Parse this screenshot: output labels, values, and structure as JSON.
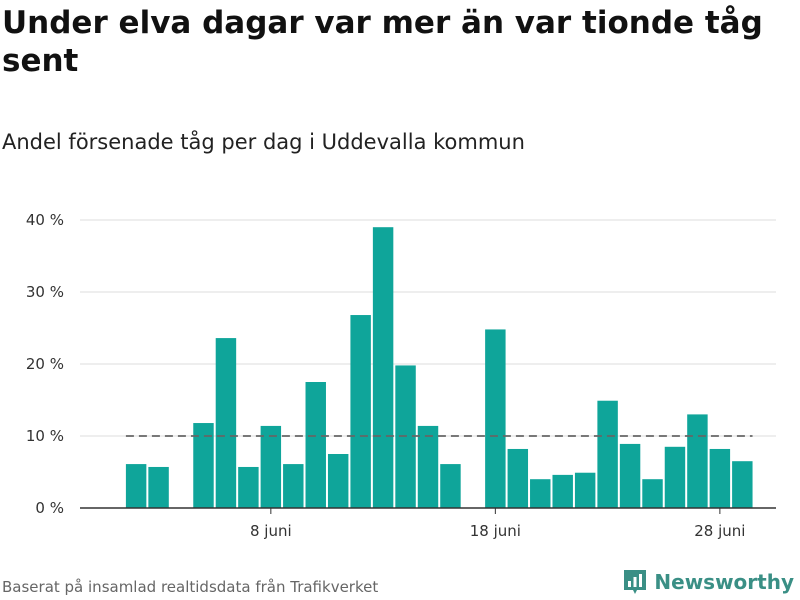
{
  "header": {
    "title": "Under elva dagar var mer än var tionde tåg sent",
    "subtitle": "Andel försenade tåg per dag i Uddevalla kommun"
  },
  "footer": {
    "source": "Baserat på insamlad realtidsdata från Trafikverket",
    "brand": "Newsworthy"
  },
  "colors": {
    "bar": "#0fa59a",
    "reference_line": "#666666",
    "grid": "#dddddd",
    "axis": "#333333",
    "brand": "#3a8f85"
  },
  "icons": {
    "brand_logo": "bar-chart-logo-icon"
  },
  "chart_data": {
    "type": "bar",
    "x_unit": "day of June",
    "x": [
      2,
      3,
      5,
      6,
      7,
      8,
      9,
      10,
      11,
      12,
      13,
      14,
      15,
      16,
      18,
      19,
      20,
      21,
      22,
      23,
      24,
      25,
      26,
      27,
      28,
      29
    ],
    "values": [
      6.1,
      5.7,
      11.8,
      23.6,
      5.7,
      11.4,
      6.1,
      17.5,
      7.5,
      26.8,
      39.0,
      19.8,
      11.4,
      6.1,
      24.8,
      8.2,
      4.0,
      4.6,
      4.9,
      14.9,
      8.9,
      4.0,
      8.5,
      13.0,
      8.2,
      6.5
    ],
    "reference_value": 10,
    "x_range": [
      -0.5,
      30.5
    ],
    "ylim": [
      0,
      40
    ],
    "yticks": [
      {
        "value": 0,
        "label": "0 %"
      },
      {
        "value": 10,
        "label": "10 %"
      },
      {
        "value": 20,
        "label": "20 %"
      },
      {
        "value": 30,
        "label": "30 %"
      },
      {
        "value": 40,
        "label": "40 %"
      }
    ],
    "xticks": [
      {
        "value": 8,
        "label": "8 juni"
      },
      {
        "value": 18,
        "label": "18 juni"
      },
      {
        "value": 28,
        "label": "28 juni"
      }
    ],
    "grid": true
  }
}
